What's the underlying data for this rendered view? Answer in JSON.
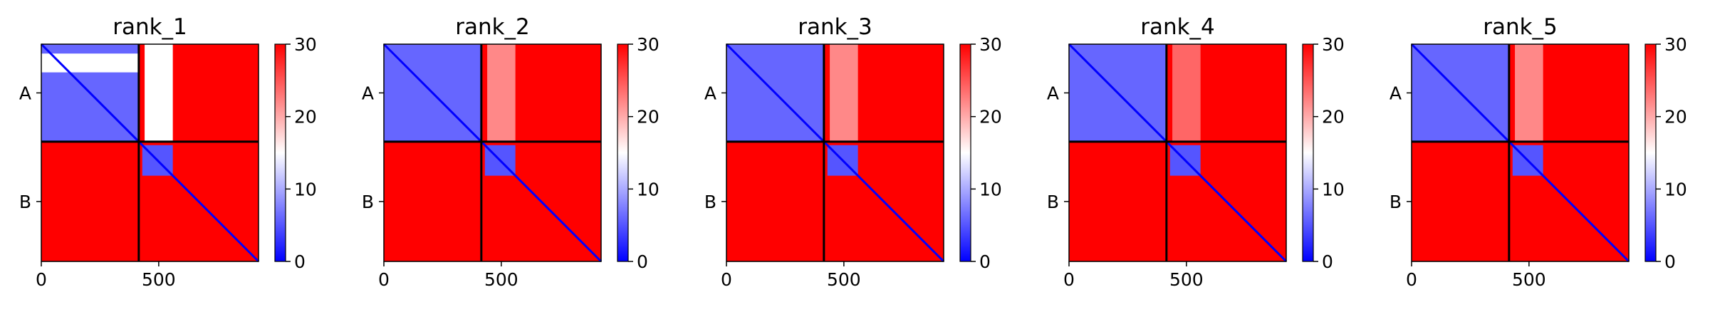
{
  "chart_data": {
    "type": "heatmap",
    "colormap": {
      "name": "bwr",
      "low": "#0000ff",
      "mid": "#ffffff",
      "high": "#ff0000"
    },
    "color_range": [
      0,
      30
    ],
    "colorbar_ticks": [
      "0",
      "10",
      "20",
      "30"
    ],
    "x_ticks": [
      {
        "value": 0,
        "label": "0"
      },
      {
        "value": 500,
        "label": "500"
      }
    ],
    "y_tick_labels": [
      "A",
      "B"
    ],
    "chain_boundary": 415,
    "matrix_size": 925,
    "grid": false,
    "panels": [
      {
        "title": "rank_1",
        "regions": [
          {
            "x": [
              0,
              415
            ],
            "y": [
              0,
              415
            ],
            "value": 6
          },
          {
            "x": [
              415,
              925
            ],
            "y": [
              0,
              415
            ],
            "value": 30
          },
          {
            "x": [
              440,
              560
            ],
            "y": [
              0,
              415
            ],
            "value": 15
          },
          {
            "x": [
              0,
              415
            ],
            "y": [
              415,
              925
            ],
            "value": 30
          },
          {
            "x": [
              0,
              415
            ],
            "y": [
              40,
              120
            ],
            "value": 15
          },
          {
            "x": [
              415,
              925
            ],
            "y": [
              415,
              925
            ],
            "value": 30
          },
          {
            "x": [
              430,
              560
            ],
            "y": [
              430,
              560
            ],
            "value": 5
          }
        ]
      },
      {
        "title": "rank_2",
        "regions": [
          {
            "x": [
              0,
              415
            ],
            "y": [
              0,
              415
            ],
            "value": 6
          },
          {
            "x": [
              415,
              925
            ],
            "y": [
              0,
              415
            ],
            "value": 30
          },
          {
            "x": [
              440,
              560
            ],
            "y": [
              0,
              415
            ],
            "value": 22
          },
          {
            "x": [
              0,
              415
            ],
            "y": [
              415,
              925
            ],
            "value": 30
          },
          {
            "x": [
              415,
              925
            ],
            "y": [
              415,
              925
            ],
            "value": 30
          },
          {
            "x": [
              430,
              560
            ],
            "y": [
              430,
              560
            ],
            "value": 5
          }
        ]
      },
      {
        "title": "rank_3",
        "regions": [
          {
            "x": [
              0,
              415
            ],
            "y": [
              0,
              415
            ],
            "value": 6
          },
          {
            "x": [
              415,
              925
            ],
            "y": [
              0,
              415
            ],
            "value": 30
          },
          {
            "x": [
              440,
              560
            ],
            "y": [
              0,
              415
            ],
            "value": 22
          },
          {
            "x": [
              0,
              415
            ],
            "y": [
              415,
              925
            ],
            "value": 30
          },
          {
            "x": [
              415,
              925
            ],
            "y": [
              415,
              925
            ],
            "value": 30
          },
          {
            "x": [
              430,
              560
            ],
            "y": [
              430,
              560
            ],
            "value": 5
          }
        ]
      },
      {
        "title": "rank_4",
        "regions": [
          {
            "x": [
              0,
              415
            ],
            "y": [
              0,
              415
            ],
            "value": 6
          },
          {
            "x": [
              415,
              925
            ],
            "y": [
              0,
              415
            ],
            "value": 30
          },
          {
            "x": [
              440,
              560
            ],
            "y": [
              0,
              415
            ],
            "value": 24
          },
          {
            "x": [
              0,
              415
            ],
            "y": [
              415,
              925
            ],
            "value": 30
          },
          {
            "x": [
              415,
              925
            ],
            "y": [
              415,
              925
            ],
            "value": 30
          },
          {
            "x": [
              430,
              560
            ],
            "y": [
              430,
              560
            ],
            "value": 5
          }
        ]
      },
      {
        "title": "rank_5",
        "regions": [
          {
            "x": [
              0,
              415
            ],
            "y": [
              0,
              415
            ],
            "value": 6
          },
          {
            "x": [
              415,
              925
            ],
            "y": [
              0,
              415
            ],
            "value": 30
          },
          {
            "x": [
              440,
              560
            ],
            "y": [
              0,
              415
            ],
            "value": 22
          },
          {
            "x": [
              0,
              415
            ],
            "y": [
              415,
              925
            ],
            "value": 30
          },
          {
            "x": [
              415,
              925
            ],
            "y": [
              415,
              925
            ],
            "value": 30
          },
          {
            "x": [
              430,
              560
            ],
            "y": [
              430,
              560
            ],
            "value": 5
          }
        ]
      }
    ]
  }
}
